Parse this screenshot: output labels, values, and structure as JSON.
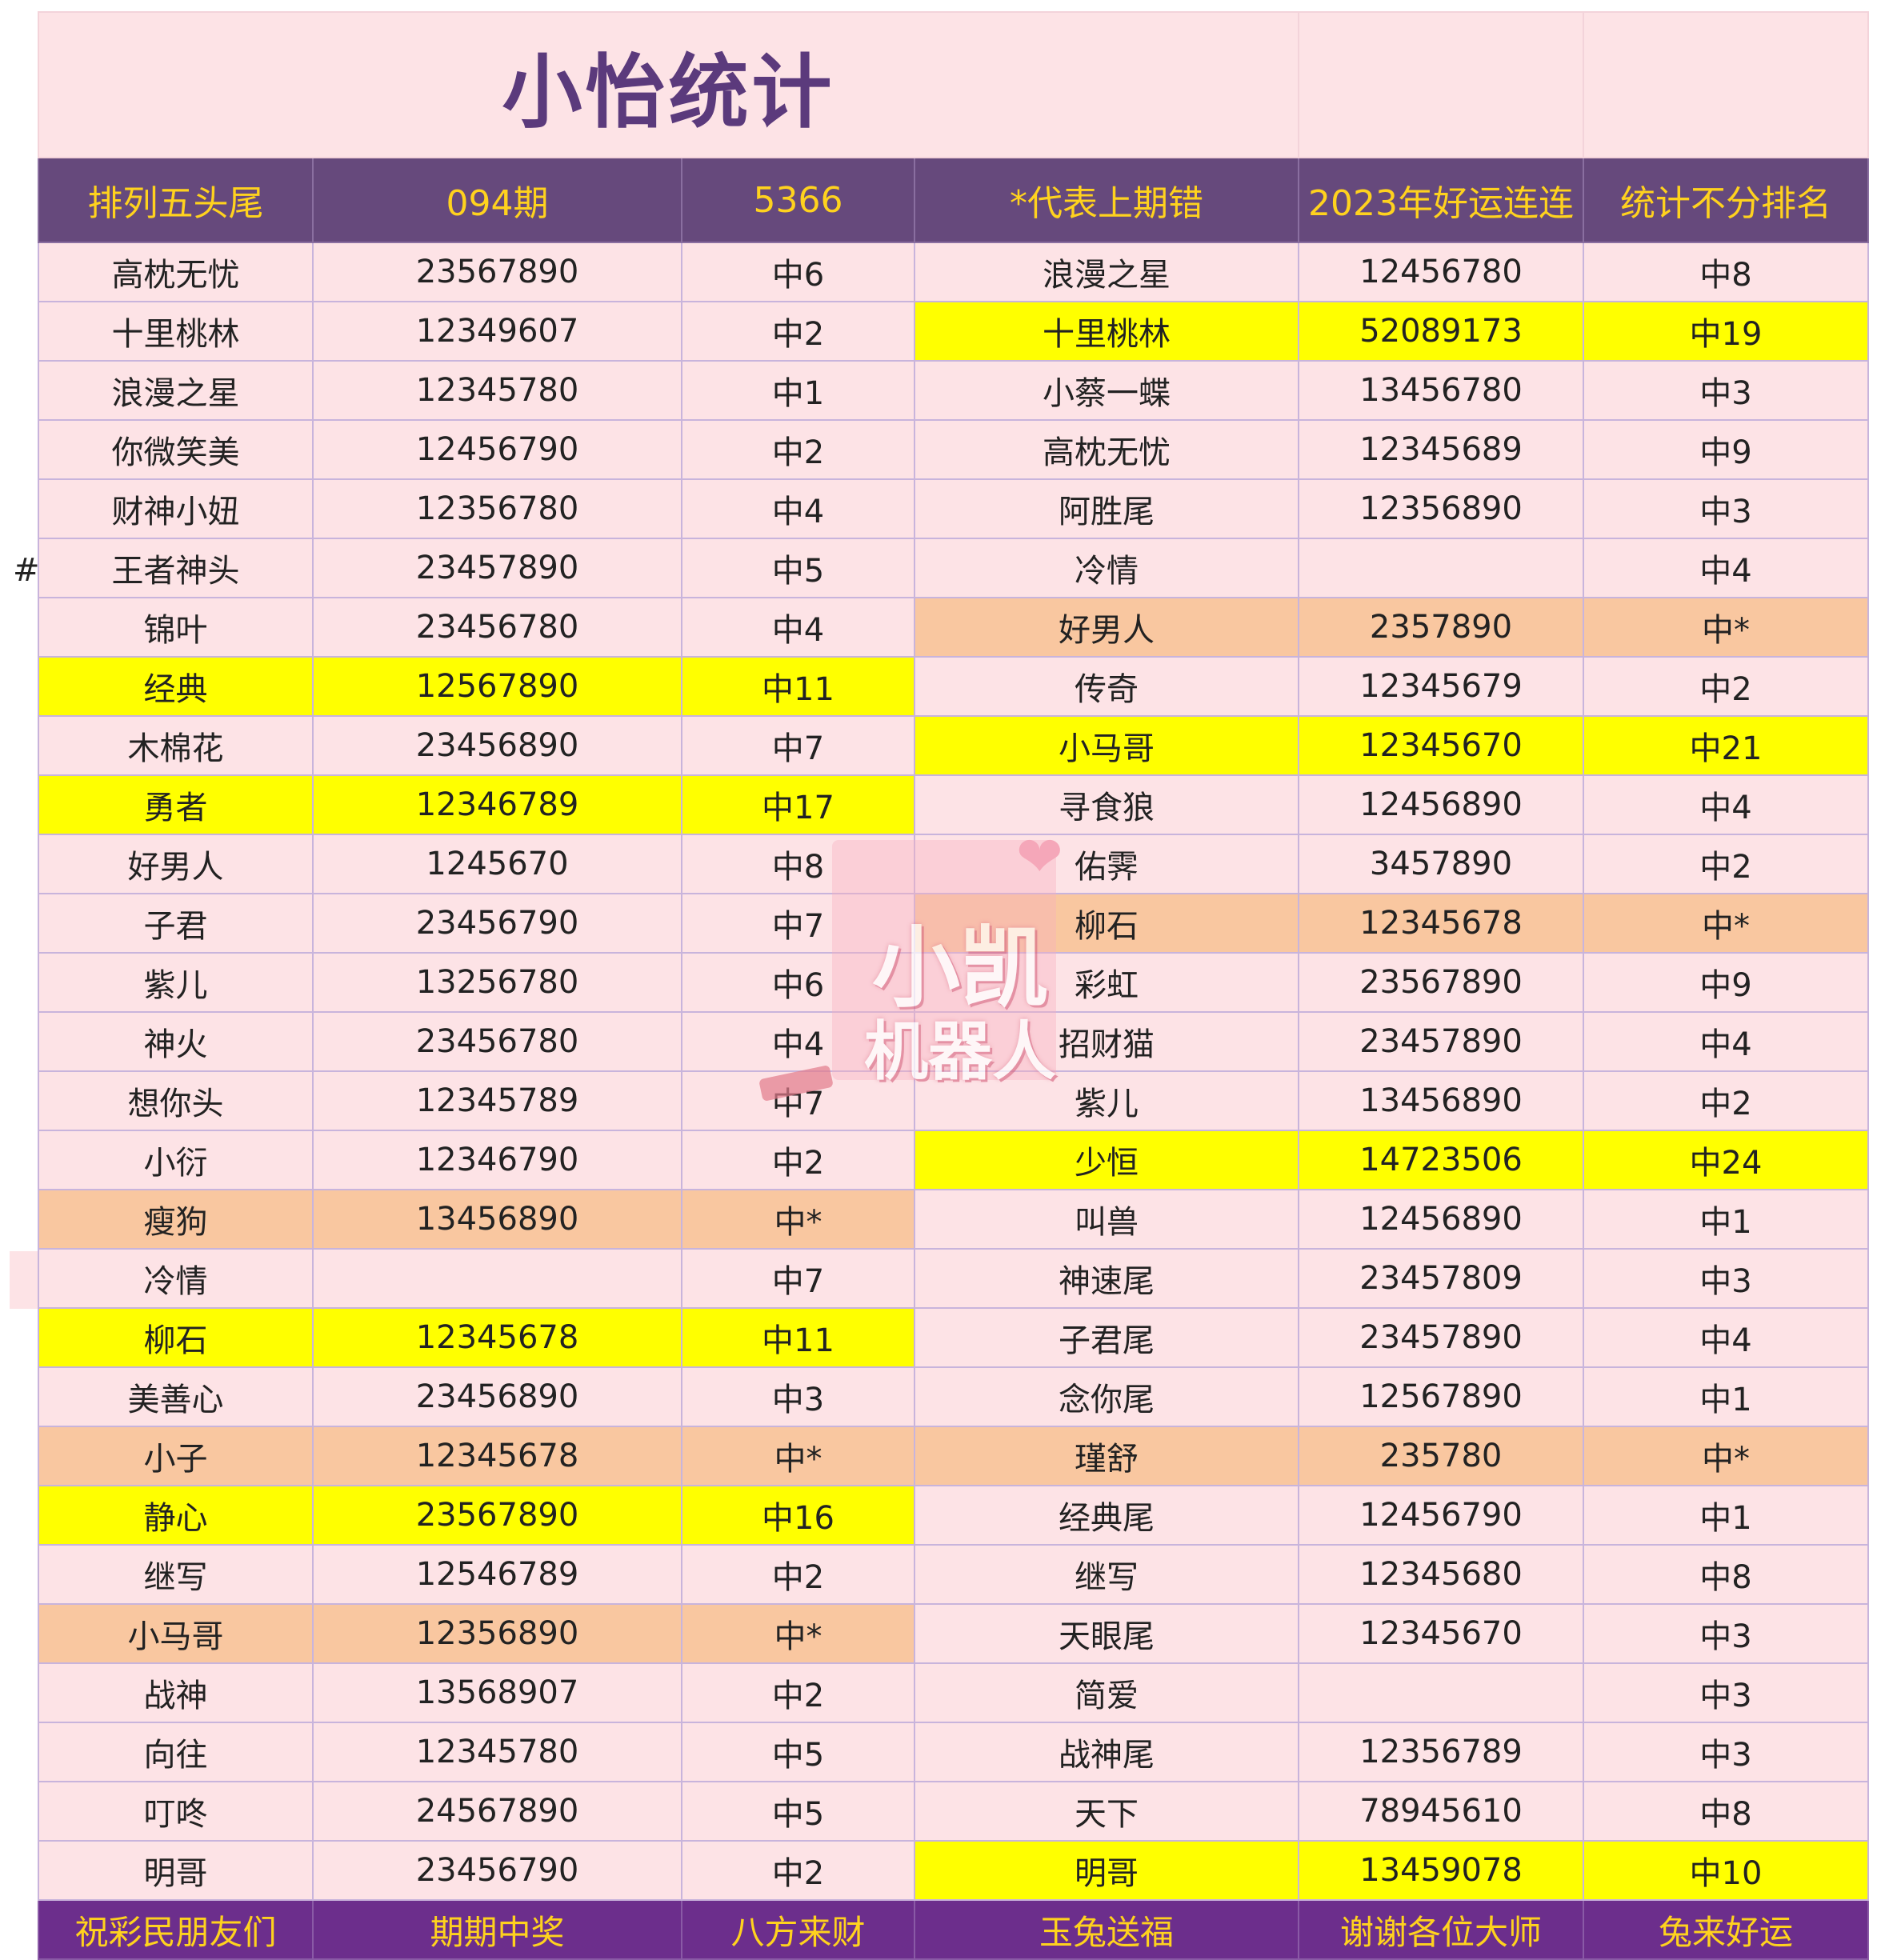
{
  "title": "小怡统计",
  "hash_mark": "#",
  "headers": [
    "排列五头尾",
    "094期",
    "5366",
    "*代表上期错",
    "2023年好运连连",
    "统计不分排名"
  ],
  "rows": [
    {
      "cells": [
        "高枕无忧",
        "23567890",
        "中6",
        "浪漫之星",
        "12456780",
        "中8"
      ],
      "left_hl": "",
      "right_hl": ""
    },
    {
      "cells": [
        "十里桃林",
        "12349607",
        "中2",
        "十里桃林",
        "52089173",
        "中19"
      ],
      "left_hl": "",
      "right_hl": "yellow"
    },
    {
      "cells": [
        "浪漫之星",
        "12345780",
        "中1",
        "小蔡一蝶",
        "13456780",
        "中3"
      ],
      "left_hl": "",
      "right_hl": ""
    },
    {
      "cells": [
        "你微笑美",
        "12456790",
        "中2",
        "高枕无忧",
        "12345689",
        "中9"
      ],
      "left_hl": "",
      "right_hl": ""
    },
    {
      "cells": [
        "财神小妞",
        "12356780",
        "中4",
        "阿胜尾",
        "12356890",
        "中3"
      ],
      "left_hl": "",
      "right_hl": ""
    },
    {
      "cells": [
        "王者神头",
        "23457890",
        "中5",
        "冷情",
        "",
        "中4"
      ],
      "left_hl": "",
      "right_hl": ""
    },
    {
      "cells": [
        "锦叶",
        "23456780",
        "中4",
        "好男人",
        "2357890",
        "中*"
      ],
      "left_hl": "",
      "right_hl": "orange"
    },
    {
      "cells": [
        "经典",
        "12567890",
        "中11",
        "传奇",
        "12345679",
        "中2"
      ],
      "left_hl": "yellow",
      "right_hl": ""
    },
    {
      "cells": [
        "木棉花",
        "23456890",
        "中7",
        "小马哥",
        "12345670",
        "中21"
      ],
      "left_hl": "",
      "right_hl": "yellow"
    },
    {
      "cells": [
        "勇者",
        "12346789",
        "中17",
        "寻食狼",
        "12456890",
        "中4"
      ],
      "left_hl": "yellow",
      "right_hl": ""
    },
    {
      "cells": [
        "好男人",
        "1245670",
        "中8",
        "佑霁",
        "3457890",
        "中2"
      ],
      "left_hl": "",
      "right_hl": ""
    },
    {
      "cells": [
        "子君",
        "23456790",
        "中7",
        "柳石",
        "12345678",
        "中*"
      ],
      "left_hl": "",
      "right_hl": "orange"
    },
    {
      "cells": [
        "紫儿",
        "13256780",
        "中6",
        "彩虹",
        "23567890",
        "中9"
      ],
      "left_hl": "",
      "right_hl": ""
    },
    {
      "cells": [
        "神火",
        "23456780",
        "中4",
        "招财猫",
        "23457890",
        "中4"
      ],
      "left_hl": "",
      "right_hl": ""
    },
    {
      "cells": [
        "想你头",
        "12345789",
        "中7",
        "紫儿",
        "13456890",
        "中2"
      ],
      "left_hl": "",
      "right_hl": ""
    },
    {
      "cells": [
        "小衍",
        "12346790",
        "中2",
        "少恒",
        "14723506",
        "中24"
      ],
      "left_hl": "",
      "right_hl": "yellow"
    },
    {
      "cells": [
        "瘦狗",
        "13456890",
        "中*",
        "叫兽",
        "12456890",
        "中1"
      ],
      "left_hl": "orange",
      "right_hl": ""
    },
    {
      "cells": [
        "冷情",
        "",
        "中7",
        "神速尾",
        "23457809",
        "中3"
      ],
      "left_hl": "",
      "right_hl": ""
    },
    {
      "cells": [
        "柳石",
        "12345678",
        "中11",
        "子君尾",
        "23457890",
        "中4"
      ],
      "left_hl": "yellow",
      "right_hl": ""
    },
    {
      "cells": [
        "美善心",
        "23456890",
        "中3",
        "念你尾",
        "12567890",
        "中1"
      ],
      "left_hl": "",
      "right_hl": ""
    },
    {
      "cells": [
        "小子",
        "12345678",
        "中*",
        "瑾舒",
        "235780",
        "中*"
      ],
      "left_hl": "orange",
      "right_hl": "orange"
    },
    {
      "cells": [
        "静心",
        "23567890",
        "中16",
        "经典尾",
        "12456790",
        "中1"
      ],
      "left_hl": "yellow",
      "right_hl": ""
    },
    {
      "cells": [
        "继写",
        "12546789",
        "中2",
        "继写",
        "12345680",
        "中8"
      ],
      "left_hl": "",
      "right_hl": ""
    },
    {
      "cells": [
        "小马哥",
        "12356890",
        "中*",
        "天眼尾",
        "12345670",
        "中3"
      ],
      "left_hl": "orange",
      "right_hl": ""
    },
    {
      "cells": [
        "战神",
        "13568907",
        "中2",
        "简爱",
        "",
        "中3"
      ],
      "left_hl": "",
      "right_hl": ""
    },
    {
      "cells": [
        "向往",
        "12345780",
        "中5",
        "战神尾",
        "12356789",
        "中3"
      ],
      "left_hl": "",
      "right_hl": ""
    },
    {
      "cells": [
        "叮咚",
        "24567890",
        "中5",
        "天下",
        "78945610",
        "中8"
      ],
      "left_hl": "",
      "right_hl": ""
    },
    {
      "cells": [
        "明哥",
        "23456790",
        "中2",
        "明哥",
        "13459078",
        "中10"
      ],
      "left_hl": "",
      "right_hl": "yellow"
    }
  ],
  "footer": [
    "祝彩民朋友们",
    "期期中奖",
    "八方来财",
    "玉兔送福",
    "谢谢各位大师",
    "兔来好运"
  ],
  "watermark": {
    "line1": "小凯",
    "line2": "机器人",
    "heart": "❤"
  },
  "colors": {
    "header_bg": "#66497c",
    "header_text": "#ffd21e",
    "cell_bg": "#fde3e6",
    "highlight_yellow": "#ffff00",
    "highlight_orange": "#f9c7a0",
    "footer_bg": "#6c2e8c",
    "title_text": "#5b3a7c"
  }
}
